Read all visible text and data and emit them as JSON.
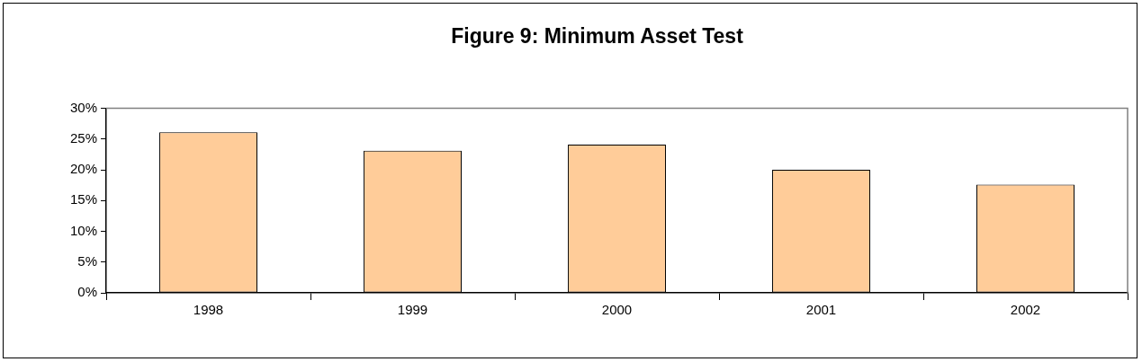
{
  "chart_data": {
    "type": "bar",
    "title": "Figure 9: Minimum Asset Test",
    "categories": [
      "1998",
      "1999",
      "2000",
      "2001",
      "2002"
    ],
    "values": [
      26.1,
      23.1,
      24.1,
      20.0,
      17.6
    ],
    "color": "#ffcc99",
    "ylim": [
      0,
      30
    ],
    "yticks": [
      {
        "value": 0,
        "label": "0%"
      },
      {
        "value": 5,
        "label": "5%"
      },
      {
        "value": 10,
        "label": "10%"
      },
      {
        "value": 15,
        "label": "15%"
      },
      {
        "value": 20,
        "label": "20%"
      },
      {
        "value": 25,
        "label": "25%"
      },
      {
        "value": 30,
        "label": "30%"
      }
    ],
    "grid": false,
    "legend": false
  }
}
